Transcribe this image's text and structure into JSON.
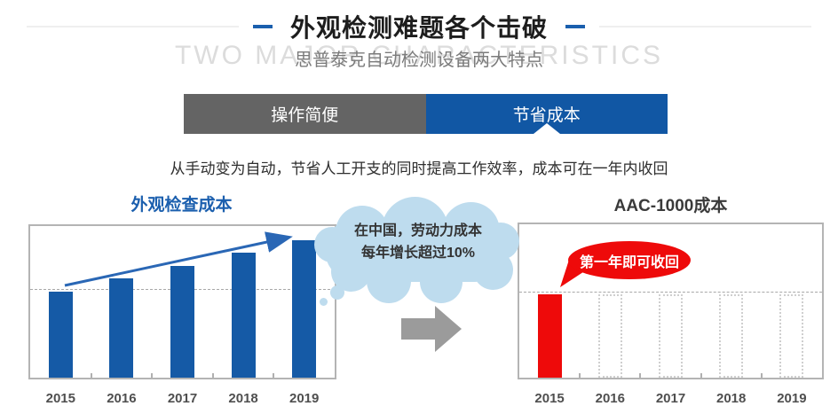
{
  "header": {
    "title": "外观检测难题各个击破",
    "subtitle": "思普泰克自动检测设备两大特点",
    "watermark": "TWO MAJOR CHARACTERISTICS"
  },
  "tabs": {
    "items": [
      {
        "label": "操作简便",
        "active": false
      },
      {
        "label": "节省成本",
        "active": true
      }
    ]
  },
  "description": "从手动变为自动，节省人工开支的同时提高工作效率，成本可在一年内收回",
  "annotations": {
    "cloud": {
      "line1": "在中国，劳动力成本",
      "line2": "每年增长超过10%"
    },
    "speech_bubble": "第一年即可收回"
  },
  "colors": {
    "accent_blue": "#1a5fad",
    "tab_gray": "#646464",
    "tab_blue": "#1157a4",
    "bar_blue": "#155aa6",
    "bar_red": "#ee0a0a",
    "cloud_fill": "#bedcee",
    "arrow_gray": "#9b9b9b"
  },
  "chart_data": [
    {
      "type": "bar",
      "title": "外观检查成本",
      "categories": [
        "2015",
        "2016",
        "2017",
        "2018",
        "2019"
      ],
      "values": [
        100,
        115,
        130,
        145,
        160
      ],
      "xlabel": "",
      "ylabel": "",
      "unit": "relative labor inspection cost (2015 = 100, ~10% annual growth)",
      "gridline_at": 100,
      "grid": "single dashed horizontal reference line at 2015 level",
      "trend_arrow": true,
      "bar_color": "#155aa6",
      "y_axis_ticks": "none"
    },
    {
      "type": "bar",
      "title": "AAC-1000成本",
      "categories": [
        "2015",
        "2016",
        "2017",
        "2018",
        "2019"
      ],
      "values": [
        100,
        0,
        0,
        0,
        0
      ],
      "placeholder_values": [
        null,
        100,
        100,
        100,
        100
      ],
      "xlabel": "",
      "ylabel": "",
      "unit": "equipment cost paid only in first year; 2016–2019 shown as empty dashed bars",
      "gridline_at": 100,
      "grid": "single dashed horizontal reference line at 2015 level",
      "trend_arrow": false,
      "bar_color": "#ee0a0a",
      "y_axis_ticks": "none"
    }
  ]
}
